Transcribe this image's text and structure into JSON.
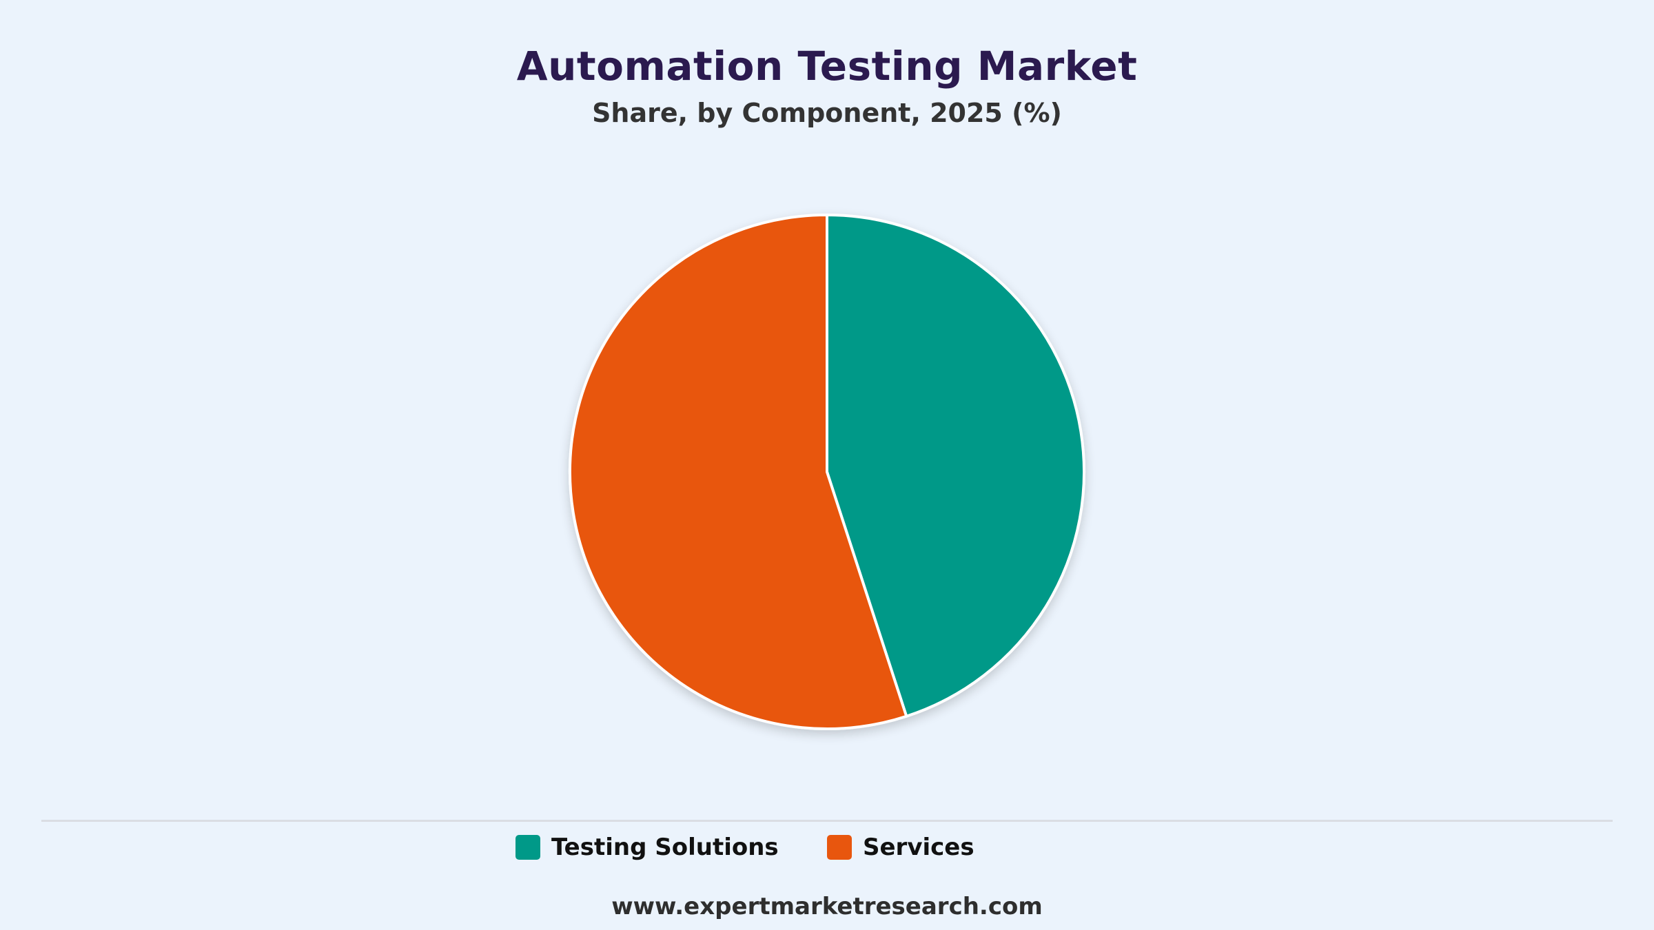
{
  "chart_data": {
    "type": "pie",
    "title": "Automation Testing Market",
    "subtitle": "Share, by Component, 2025 (%)",
    "categories": [
      "Testing Solutions",
      "Services"
    ],
    "values": [
      45,
      55
    ],
    "colors": [
      "#009988",
      "#e8560e"
    ],
    "legend_position": "bottom"
  },
  "footer": {
    "source": "www.expertmarketresearch.com"
  }
}
